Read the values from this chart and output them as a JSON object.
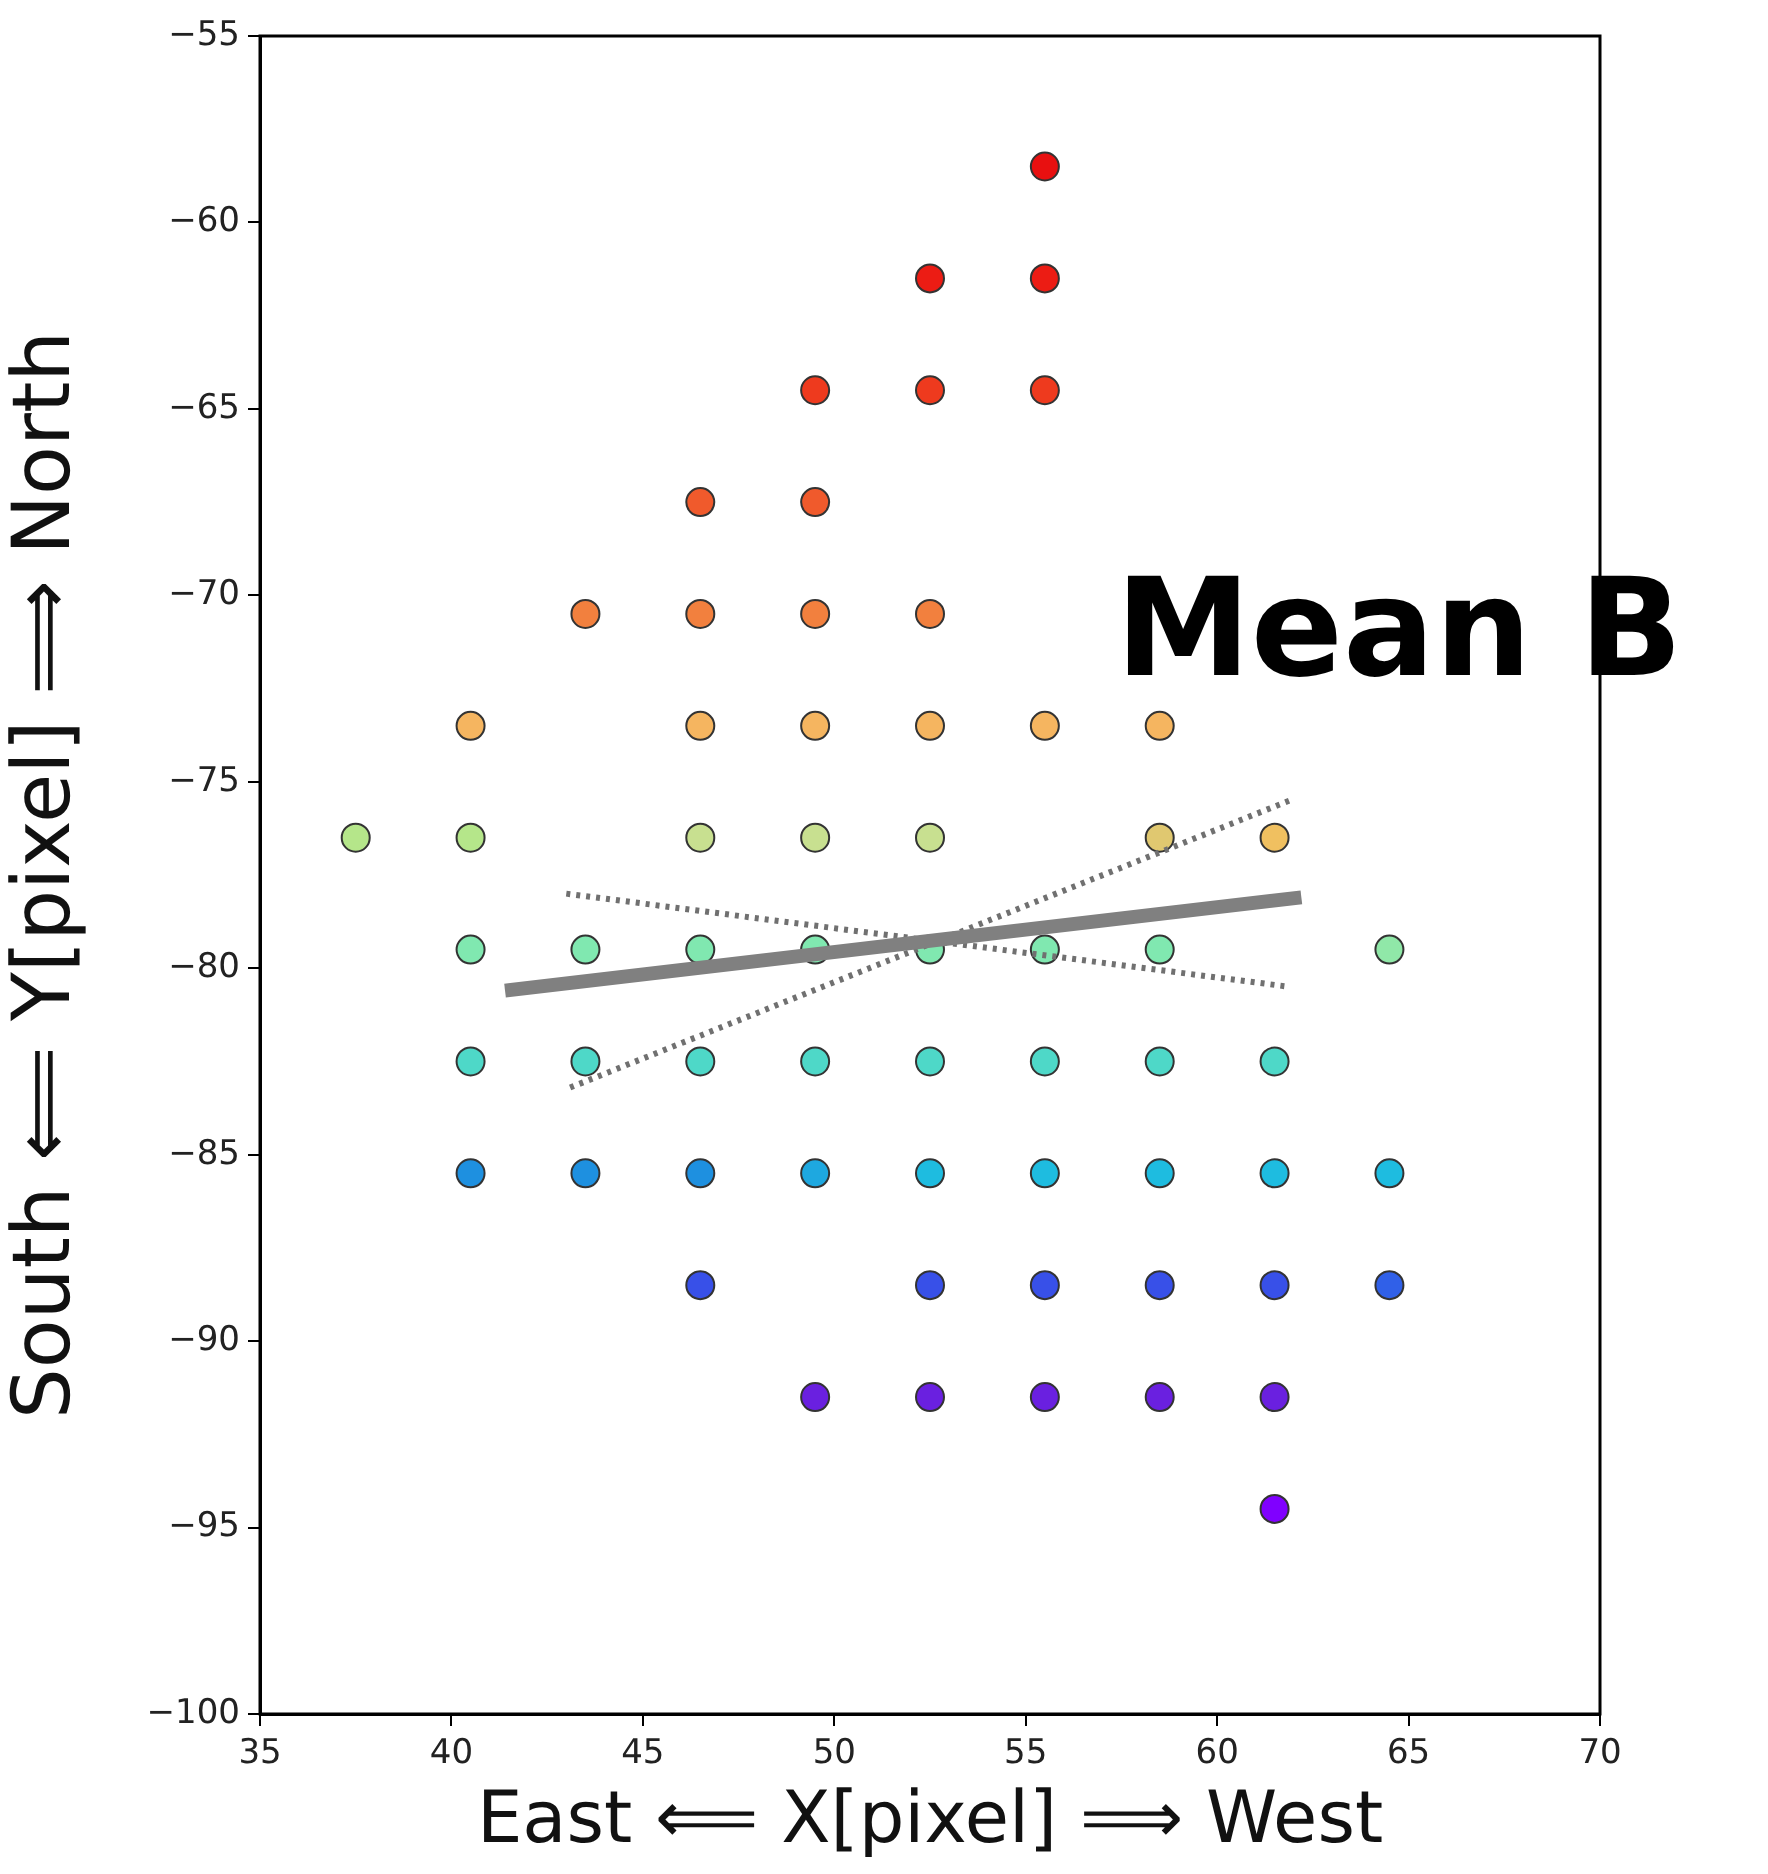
{
  "chart_data": {
    "type": "scatter",
    "xlabel": "East ⟸ X[pixel] ⟹ West",
    "ylabel": "South ⟸ Y[pixel] ⟹ North",
    "xlim": [
      35,
      70
    ],
    "xticks": [
      35,
      40,
      45,
      50,
      55,
      60,
      65,
      70
    ],
    "ylim": [
      -100,
      -55
    ],
    "yticks": [
      -100,
      -95,
      -90,
      -85,
      -80,
      -75,
      -70,
      -65,
      -60,
      -55
    ],
    "marker": "circle",
    "annotations": [
      "Mean B"
    ],
    "series": [
      {
        "type": "scatter",
        "x": [
          55.5,
          52.5,
          55.5,
          49.5,
          52.5,
          55.5,
          46.5,
          49.5,
          43.5,
          46.5,
          49.5,
          52.5,
          40.5,
          46.5,
          49.5,
          52.5,
          55.5,
          58.5,
          37.5,
          40.5,
          46.5,
          49.5,
          52.5,
          58.5,
          61.5,
          40.5,
          43.5,
          46.5,
          49.5,
          52.5,
          55.5,
          58.5,
          64.5,
          40.5,
          43.5,
          46.5,
          49.5,
          52.5,
          55.5,
          58.5,
          61.5,
          40.5,
          43.5,
          46.5,
          49.5,
          52.5,
          55.5,
          58.5,
          61.5,
          64.5,
          46.5,
          52.5,
          55.5,
          58.5,
          61.5,
          64.5,
          49.5,
          52.5,
          55.5,
          58.5,
          61.5,
          61.5
        ],
        "values": [
          -58.5,
          -61.5,
          -61.5,
          -64.5,
          -64.5,
          -64.5,
          -67.5,
          -67.5,
          -70.5,
          -70.5,
          -70.5,
          -70.5,
          -73.5,
          -73.5,
          -73.5,
          -73.5,
          -73.5,
          -73.5,
          -76.5,
          -76.5,
          -76.5,
          -76.5,
          -76.5,
          -76.5,
          -76.5,
          -79.5,
          -79.5,
          -79.5,
          -79.5,
          -79.5,
          -79.5,
          -79.5,
          -79.5,
          -82.5,
          -82.5,
          -82.5,
          -82.5,
          -82.5,
          -82.5,
          -82.5,
          -82.5,
          -85.5,
          -85.5,
          -85.5,
          -85.5,
          -85.5,
          -85.5,
          -85.5,
          -85.5,
          -85.5,
          -88.5,
          -88.5,
          -88.5,
          -88.5,
          -88.5,
          -88.5,
          -91.5,
          -91.5,
          -91.5,
          -91.5,
          -91.5,
          -94.5
        ],
        "colors": [
          "#e81010",
          "#ec1c14",
          "#ec1c14",
          "#ee3a1e",
          "#ee3a1e",
          "#ee3a1e",
          "#f05a2c",
          "#f05a2c",
          "#f2803e",
          "#f2803e",
          "#f2803e",
          "#f2803e",
          "#f5b560",
          "#f5b560",
          "#f5b560",
          "#f5b560",
          "#f5b560",
          "#f5b560",
          "#b5e68a",
          "#b5e68a",
          "#c8e090",
          "#c8e090",
          "#c8e090",
          "#e0c870",
          "#f0c060",
          "#80e8b0",
          "#80e8b0",
          "#80e8b0",
          "#80e8b0",
          "#80e8b0",
          "#80e8b0",
          "#80e8b0",
          "#90e8a8",
          "#4ed8c8",
          "#4ed8c8",
          "#4ed8c8",
          "#4ed8c8",
          "#4ed8c8",
          "#4ed8c8",
          "#4ed8c8",
          "#4ed8c8",
          "#1e90e0",
          "#1e90e0",
          "#1e90e0",
          "#1ea8e0",
          "#1ebce0",
          "#1ebce0",
          "#1ebce0",
          "#1ebce0",
          "#1ebce0",
          "#3850e8",
          "#3850e8",
          "#3850e8",
          "#3850e8",
          "#3850e8",
          "#3060e8",
          "#6a20e0",
          "#6a20e0",
          "#6a20e0",
          "#6a20e0",
          "#6a20e0",
          "#8000ff"
        ]
      },
      {
        "type": "line",
        "marker": "none",
        "line_style": "solid",
        "color": "#808080",
        "x": [
          41.4,
          62.2
        ],
        "values": [
          -80.6,
          -78.1
        ]
      },
      {
        "type": "line",
        "marker": "none",
        "line_style": "dotted",
        "color": "#707070",
        "x": [
          43.0,
          61.9
        ],
        "values": [
          -78.0,
          -80.5
        ]
      },
      {
        "type": "line",
        "marker": "none",
        "line_style": "dotted",
        "color": "#707070",
        "x": [
          43.1,
          61.9
        ],
        "values": [
          -83.2,
          -75.5
        ]
      }
    ]
  }
}
